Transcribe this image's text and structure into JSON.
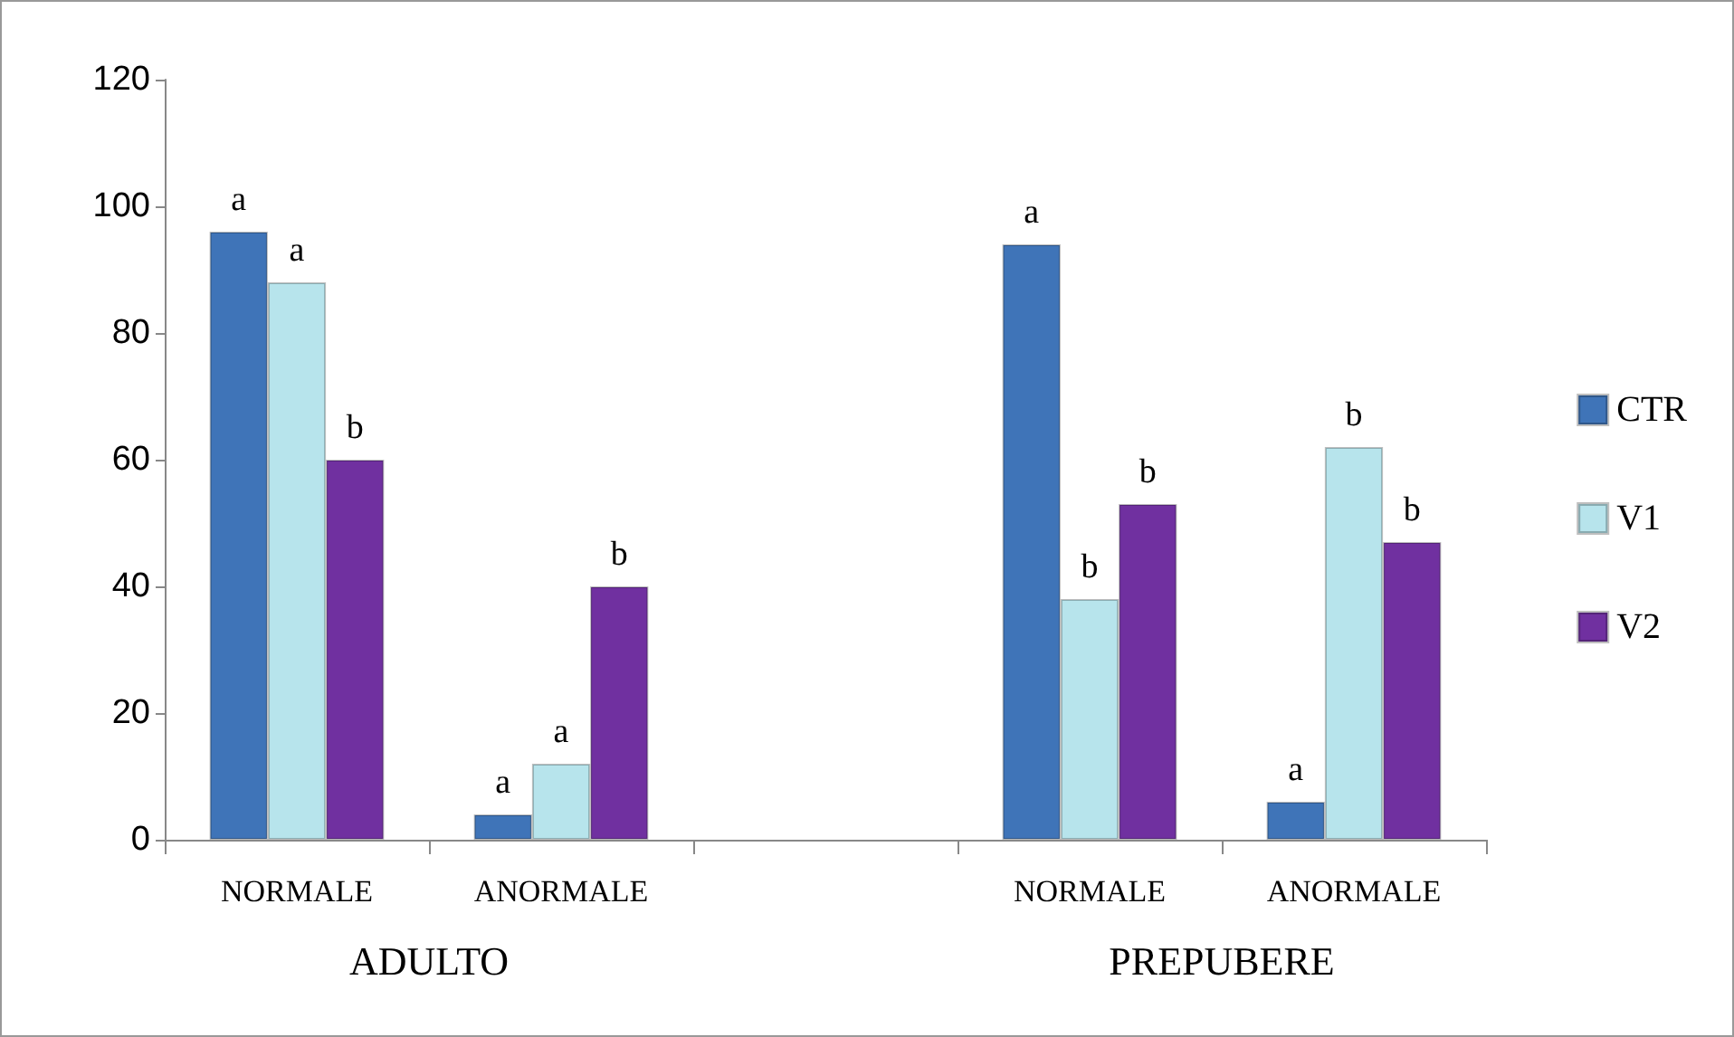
{
  "chart_data": {
    "type": "bar",
    "categories": [
      "NORMALE",
      "ANORMALE",
      null,
      "NORMALE",
      "ANORMALE"
    ],
    "series": [
      {
        "name": "CTR",
        "color": "#3f74b8",
        "values": [
          96,
          4,
          null,
          94,
          6
        ],
        "value_labels": [
          "a",
          "a",
          null,
          "a",
          "a"
        ]
      },
      {
        "name": "V1",
        "color": "#b7e4ec",
        "values": [
          88,
          12,
          null,
          38,
          62
        ],
        "value_labels": [
          "a",
          "a",
          null,
          "b",
          "b"
        ]
      },
      {
        "name": "V2",
        "color": "#7030a0",
        "values": [
          60,
          40,
          null,
          53,
          47
        ],
        "value_labels": [
          "b",
          "b",
          null,
          "b",
          "b"
        ]
      }
    ],
    "ylim": [
      0,
      120
    ],
    "yticks": [
      0,
      20,
      40,
      60,
      80,
      100,
      120
    ],
    "grid": false,
    "legend": "right",
    "annotations": [
      "ADULTO",
      "PREPUBERE"
    ]
  }
}
